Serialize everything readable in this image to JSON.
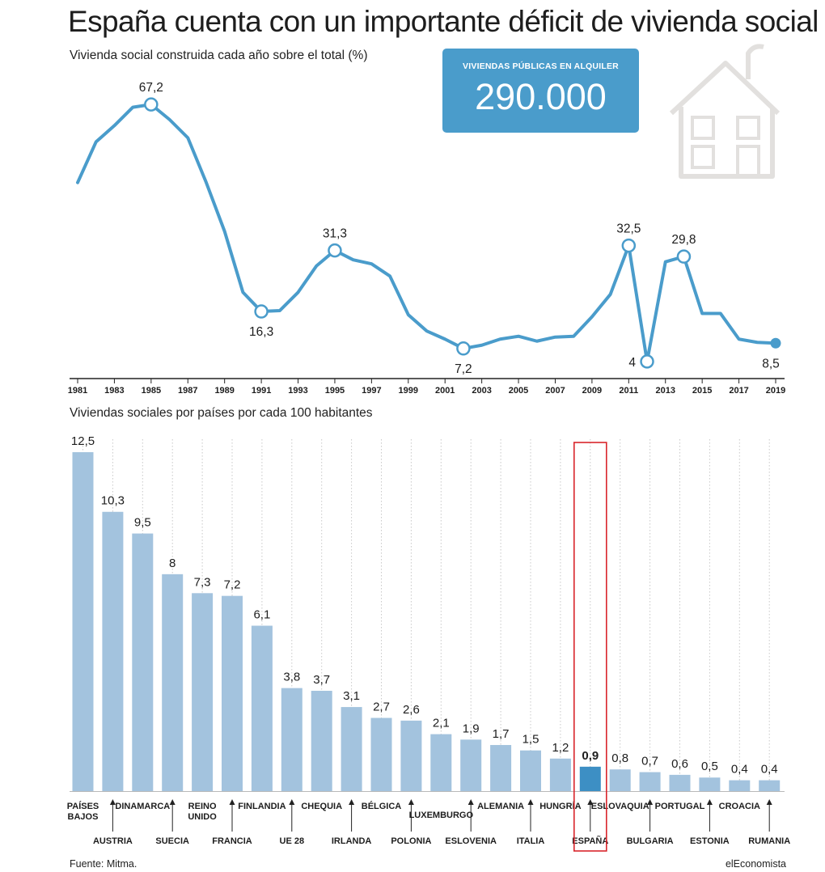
{
  "title": "España cuenta con un importante déficit de vivienda social",
  "callout": {
    "label": "VIVIENDAS PÚBLICAS EN ALQUILER",
    "value": "290.000"
  },
  "colors": {
    "line": "#4a9ccb",
    "bar": "#a3c3de",
    "bar_highlight": "#3d8fc4",
    "highlight_box": "#d9262c",
    "callout_bg": "#4a9ccb",
    "icon": "#e2e0de"
  },
  "icons": {
    "callout_decoration": "house-icon"
  },
  "chart_data": [
    {
      "type": "line",
      "title": "Vivienda social construida cada año sobre el total (%)",
      "xlabel": "",
      "ylabel": "",
      "x": [
        1981,
        1982,
        1983,
        1984,
        1985,
        1986,
        1987,
        1988,
        1989,
        1990,
        1991,
        1992,
        1993,
        1994,
        1995,
        1996,
        1997,
        1998,
        1999,
        2000,
        2001,
        2002,
        2003,
        2004,
        2005,
        2006,
        2007,
        2008,
        2009,
        2010,
        2011,
        2012,
        2013,
        2014,
        2015,
        2016,
        2017,
        2018,
        2019
      ],
      "y": [
        48,
        58,
        62,
        66.5,
        67.2,
        63.5,
        59,
        48,
        36,
        21,
        16.3,
        16.5,
        21,
        27.5,
        31.3,
        29,
        28,
        25,
        15.5,
        11.5,
        9.5,
        7.2,
        8,
        9.5,
        10.2,
        9,
        10,
        10.2,
        15,
        20.5,
        32.5,
        4,
        28.5,
        29.8,
        15.8,
        15.8,
        9.5,
        8.7,
        8.5
      ],
      "xticks": [
        1981,
        1983,
        1985,
        1987,
        1989,
        1991,
        1993,
        1995,
        1997,
        1999,
        2001,
        2003,
        2005,
        2007,
        2009,
        2011,
        2013,
        2015,
        2017,
        2019
      ],
      "ylim": [
        0,
        72
      ],
      "grid": false,
      "annotations": [
        {
          "x": 1985,
          "y": 67.2,
          "label": "67,2",
          "pos": "above"
        },
        {
          "x": 1991,
          "y": 16.3,
          "label": "16,3",
          "pos": "below"
        },
        {
          "x": 1995,
          "y": 31.3,
          "label": "31,3",
          "pos": "above"
        },
        {
          "x": 2002,
          "y": 7.2,
          "label": "7,2",
          "pos": "below"
        },
        {
          "x": 2011,
          "y": 32.5,
          "label": "32,5",
          "pos": "above"
        },
        {
          "x": 2012,
          "y": 4,
          "label": "4",
          "pos": "left"
        },
        {
          "x": 2014,
          "y": 29.8,
          "label": "29,8",
          "pos": "above"
        },
        {
          "x": 2019,
          "y": 8.5,
          "label": "8,5",
          "pos": "below-large",
          "filled": true
        }
      ]
    },
    {
      "type": "bar",
      "title": "Viviendas sociales por países por cada 100 habitantes",
      "xlabel": "",
      "ylabel": "",
      "ylim": [
        0,
        12.5
      ],
      "grid": true,
      "categories": [
        "PAÍSES BAJOS",
        "AUSTRIA",
        "DINAMARCA",
        "SUECIA",
        "REINO UNIDO",
        "FRANCIA",
        "FINLANDIA",
        "UE 28",
        "CHEQUIA",
        "IRLANDA",
        "BÉLGICA",
        "POLONIA",
        "LUXEMBURGO",
        "ESLOVENIA",
        "ALEMANIA",
        "ITALIA",
        "HUNGRÍA",
        "ESPAÑA",
        "ESLOVAQUIA",
        "BULGARIA",
        "PORTUGAL",
        "ESTONIA",
        "CROACIA",
        "RUMANIA"
      ],
      "category_lines": [
        [
          "PAÍSES",
          "BAJOS"
        ],
        [
          "AUSTRIA"
        ],
        [
          "DINAMARCA"
        ],
        [
          "SUECIA"
        ],
        [
          "REINO",
          "UNIDO"
        ],
        [
          "FRANCIA"
        ],
        [
          "FINLANDIA"
        ],
        [
          "UE 28"
        ],
        [
          "CHEQUIA"
        ],
        [
          "IRLANDA"
        ],
        [
          "BÉLGICA"
        ],
        [
          "POLONIA"
        ],
        [
          "LUXEMBURGO"
        ],
        [
          "ESLOVENIA"
        ],
        [
          "ALEMANIA"
        ],
        [
          "ITALIA"
        ],
        [
          "HUNGRÍA"
        ],
        [
          "ESPAÑA"
        ],
        [
          "ESLOVAQUIA"
        ],
        [
          "BULGARIA"
        ],
        [
          "PORTUGAL"
        ],
        [
          "ESTONIA"
        ],
        [
          "CROACIA"
        ],
        [
          "RUMANIA"
        ]
      ],
      "values": [
        12.5,
        10.3,
        9.5,
        8,
        7.3,
        7.2,
        6.1,
        3.8,
        3.7,
        3.1,
        2.7,
        2.6,
        2.1,
        1.9,
        1.7,
        1.5,
        1.2,
        0.9,
        0.8,
        0.7,
        0.6,
        0.5,
        0.4,
        0.4
      ],
      "value_labels": [
        "12,5",
        "10,3",
        "9,5",
        "8",
        "7,3",
        "7,2",
        "6,1",
        "3,8",
        "3,7",
        "3,1",
        "2,7",
        "2,6",
        "2,1",
        "1,9",
        "1,7",
        "1,5",
        "1,2",
        "0,9",
        "0,8",
        "0,7",
        "0,6",
        "0,5",
        "0,4",
        "0,4"
      ],
      "label_row": [
        "upper",
        "lower",
        "upper",
        "lower",
        "upper",
        "lower",
        "upper",
        "lower",
        "upper",
        "lower",
        "upper",
        "lower",
        "mid",
        "lower",
        "upper",
        "lower",
        "upper",
        "lower",
        "upper",
        "lower",
        "upper",
        "lower",
        "upper",
        "lower"
      ],
      "highlight": "ESPAÑA"
    }
  ],
  "source": "Fuente: Mitma.",
  "brand": "elEconomista"
}
